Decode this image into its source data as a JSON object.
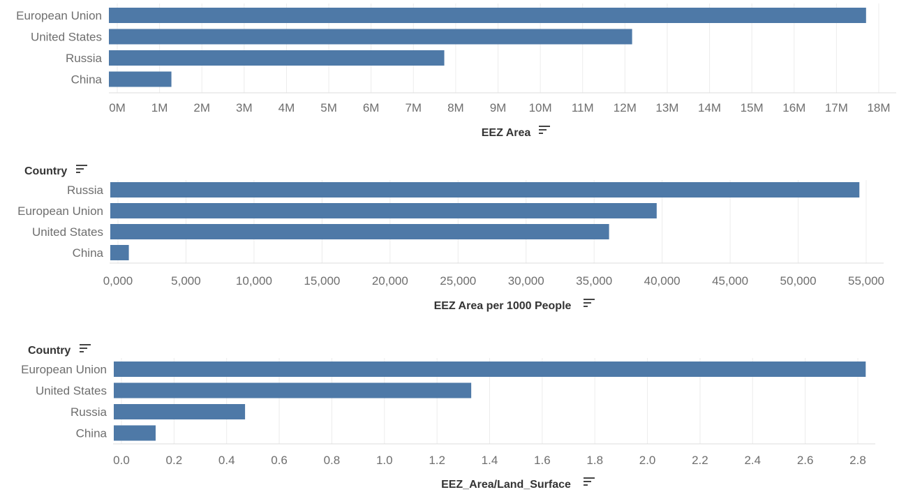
{
  "colors": {
    "bar": "#4e79a7"
  },
  "chart_data": [
    {
      "type": "bar",
      "orientation": "horizontal",
      "row_header": "",
      "xlabel": "EEZ Area",
      "categories": [
        "European Union",
        "United States",
        "Russia",
        "China"
      ],
      "values": [
        17700000,
        12170000,
        7730000,
        1280000
      ],
      "xlim": [
        0,
        18000000
      ],
      "ticks": [
        {
          "v": 0,
          "label": "0M"
        },
        {
          "v": 1000000,
          "label": "1M"
        },
        {
          "v": 2000000,
          "label": "2M"
        },
        {
          "v": 3000000,
          "label": "3M"
        },
        {
          "v": 4000000,
          "label": "4M"
        },
        {
          "v": 5000000,
          "label": "5M"
        },
        {
          "v": 6000000,
          "label": "6M"
        },
        {
          "v": 7000000,
          "label": "7M"
        },
        {
          "v": 8000000,
          "label": "8M"
        },
        {
          "v": 9000000,
          "label": "9M"
        },
        {
          "v": 10000000,
          "label": "10M"
        },
        {
          "v": 11000000,
          "label": "11M"
        },
        {
          "v": 12000000,
          "label": "12M"
        },
        {
          "v": 13000000,
          "label": "13M"
        },
        {
          "v": 14000000,
          "label": "14M"
        },
        {
          "v": 15000000,
          "label": "15M"
        },
        {
          "v": 16000000,
          "label": "16M"
        },
        {
          "v": 17000000,
          "label": "17M"
        },
        {
          "v": 18000000,
          "label": "18M"
        }
      ],
      "grid": true
    },
    {
      "type": "bar",
      "orientation": "horizontal",
      "row_header": "Country",
      "xlabel": "EEZ Area per 1000 People",
      "categories": [
        "Russia",
        "European Union",
        "United States",
        "China"
      ],
      "values": [
        54500,
        39600,
        36100,
        800
      ],
      "xlim": [
        0,
        55000
      ],
      "ticks": [
        {
          "v": 0,
          "label": "0,000"
        },
        {
          "v": 5000,
          "label": "5,000"
        },
        {
          "v": 10000,
          "label": "10,000"
        },
        {
          "v": 15000,
          "label": "15,000"
        },
        {
          "v": 20000,
          "label": "20,000"
        },
        {
          "v": 25000,
          "label": "25,000"
        },
        {
          "v": 30000,
          "label": "30,000"
        },
        {
          "v": 35000,
          "label": "35,000"
        },
        {
          "v": 40000,
          "label": "40,000"
        },
        {
          "v": 45000,
          "label": "45,000"
        },
        {
          "v": 50000,
          "label": "50,000"
        },
        {
          "v": 55000,
          "label": "55,000"
        }
      ],
      "grid": true
    },
    {
      "type": "bar",
      "orientation": "horizontal",
      "row_header": "Country",
      "xlabel": "EEZ_Area/Land_Surface",
      "categories": [
        "European Union",
        "United States",
        "Russia",
        "China"
      ],
      "values": [
        2.83,
        1.33,
        0.47,
        0.13
      ],
      "xlim": [
        0,
        2.8
      ],
      "ticks": [
        {
          "v": 0,
          "label": "0.0"
        },
        {
          "v": 0.2,
          "label": "0.2"
        },
        {
          "v": 0.4,
          "label": "0.4"
        },
        {
          "v": 0.6,
          "label": "0.6"
        },
        {
          "v": 0.8,
          "label": "0.8"
        },
        {
          "v": 1.0,
          "label": "1.0"
        },
        {
          "v": 1.2,
          "label": "1.2"
        },
        {
          "v": 1.4,
          "label": "1.4"
        },
        {
          "v": 1.6,
          "label": "1.6"
        },
        {
          "v": 1.8,
          "label": "1.8"
        },
        {
          "v": 2.0,
          "label": "2.0"
        },
        {
          "v": 2.2,
          "label": "2.2"
        },
        {
          "v": 2.4,
          "label": "2.4"
        },
        {
          "v": 2.6,
          "label": "2.6"
        },
        {
          "v": 2.8,
          "label": "2.8"
        }
      ],
      "grid": true
    }
  ]
}
